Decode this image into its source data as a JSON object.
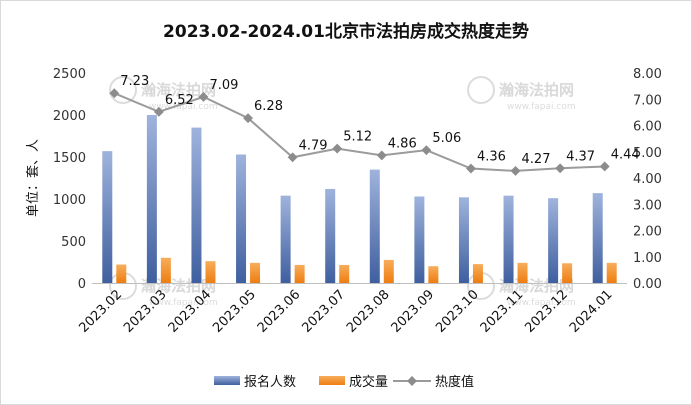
{
  "chart_data": {
    "type": "bar",
    "title": "2023.02-2024.01北京市法拍房成交热度走势",
    "ylabel": "单位：套、人",
    "categories": [
      "2023.02",
      "2023.03",
      "2023.04",
      "2023.05",
      "2023.06",
      "2023.07",
      "2023.08",
      "2023.09",
      "2023.10",
      "2023.11",
      "2023.12",
      "2024.01"
    ],
    "ylim": [
      0,
      2500
    ],
    "y2lim": [
      0,
      8
    ],
    "yticks": [
      "0",
      "500",
      "1000",
      "1500",
      "2000",
      "2500"
    ],
    "y2ticks": [
      "0.00",
      "1.00",
      "2.00",
      "3.00",
      "4.00",
      "5.00",
      "6.00",
      "7.00",
      "8.00"
    ],
    "series": [
      {
        "name": "报名人数",
        "kind": "bar",
        "color": "#5b78b3",
        "values": [
          1570,
          2000,
          1850,
          1530,
          1040,
          1120,
          1350,
          1030,
          1020,
          1040,
          1010,
          1070
        ]
      },
      {
        "name": "成交量",
        "kind": "bar",
        "color": "#f28a24",
        "values": [
          220,
          300,
          260,
          240,
          215,
          215,
          275,
          200,
          225,
          240,
          235,
          240
        ]
      },
      {
        "name": "热度值",
        "kind": "line",
        "axis": "right",
        "color": "#9b9b9b",
        "values": [
          7.23,
          6.52,
          7.09,
          6.28,
          4.79,
          5.12,
          4.86,
          5.06,
          4.36,
          4.27,
          4.37,
          4.44
        ],
        "labels": [
          "7.23",
          "6.52",
          "7.09",
          "6.28",
          "4.79",
          "5.12",
          "4.86",
          "5.06",
          "4.36",
          "4.27",
          "4.37",
          "4.44"
        ]
      }
    ],
    "legend_position": "bottom",
    "grid": false
  },
  "watermark": {
    "text": "瀚海法拍网",
    "url": "www.fapai.com"
  }
}
